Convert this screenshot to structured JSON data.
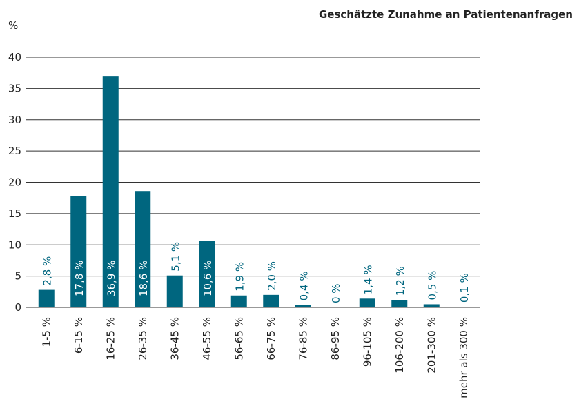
{
  "chart_data": {
    "type": "bar",
    "title": "Geschätzte Zunahme an Patientenanfragen",
    "y_label": "%",
    "categories": [
      "1-5 %",
      "6-15 %",
      "16-25 %",
      "26-35 %",
      "36-45 %",
      "46-55 %",
      "56-65 %",
      "66-75 %",
      "76-85 %",
      "86-95 %",
      "96-105 %",
      "106-200 %",
      "201-300 %",
      "mehr als 300 %"
    ],
    "values": [
      2.8,
      17.8,
      36.9,
      18.6,
      5.1,
      10.6,
      1.9,
      2.0,
      0.4,
      0,
      1.4,
      1.2,
      0.5,
      0.1
    ],
    "value_labels": [
      "2,8 %",
      "17,8 %",
      "36,9 %",
      "18,6 %",
      "5,1 %",
      "10,6 %",
      "1,9 %",
      "2,0 %",
      "0,4 %",
      "0 %",
      "1,4 %",
      "1,2 %",
      "0,5 %",
      "0,1 %"
    ],
    "color": "#00667f",
    "ylim": [
      0,
      40
    ],
    "yticks": [
      0,
      5,
      10,
      15,
      20,
      25,
      30,
      35,
      40
    ],
    "grid": true
  }
}
